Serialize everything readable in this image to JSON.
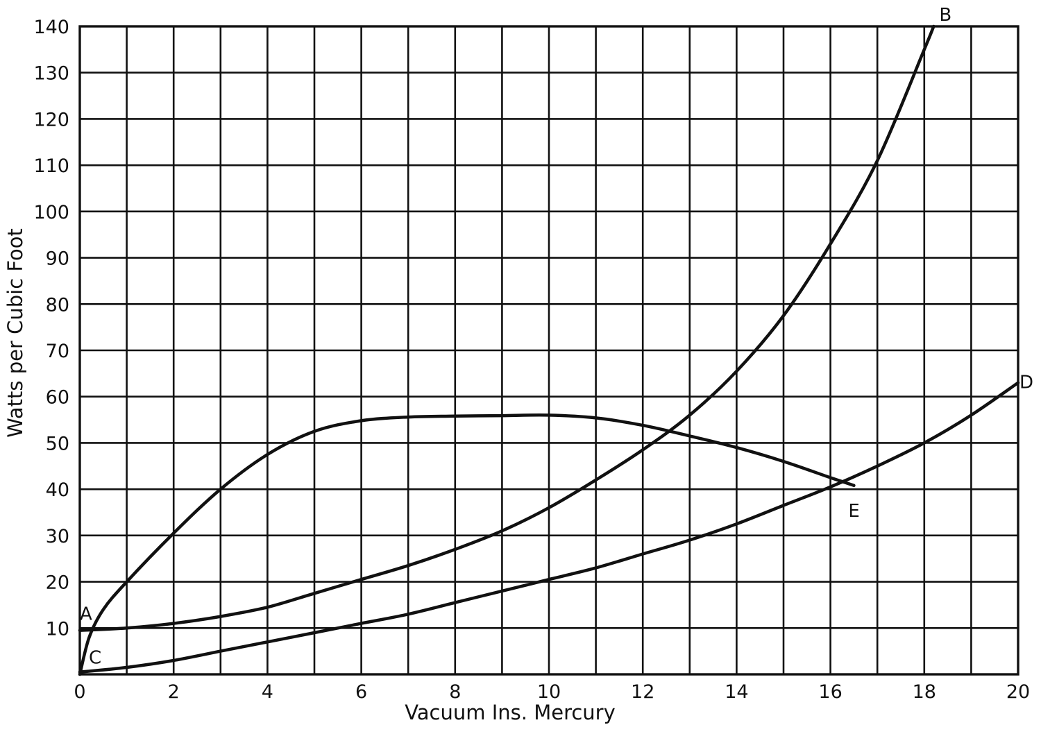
{
  "chart_data": {
    "type": "line",
    "title": "",
    "xlabel": "Vacuum Ins. Mercury",
    "ylabel": "Watts per Cubic Foot",
    "xlim": [
      0,
      20
    ],
    "ylim": [
      0,
      140
    ],
    "x_ticks": [
      "0",
      "2",
      "4",
      "6",
      "8",
      "10",
      "12",
      "14",
      "16",
      "18",
      "20"
    ],
    "y_ticks": [
      "10",
      "20",
      "30",
      "40",
      "50",
      "60",
      "70",
      "80",
      "90",
      "100",
      "110",
      "120",
      "130",
      "140"
    ],
    "grid": true,
    "series": [
      {
        "name": "A–B",
        "start_label": "A",
        "end_label": "B",
        "points": [
          [
            0,
            9.5
          ],
          [
            1,
            10
          ],
          [
            2,
            11
          ],
          [
            3,
            12.5
          ],
          [
            4,
            14.5
          ],
          [
            5,
            17.5
          ],
          [
            6,
            20.5
          ],
          [
            7,
            23.5
          ],
          [
            8,
            27
          ],
          [
            9,
            31
          ],
          [
            10,
            36
          ],
          [
            11,
            42
          ],
          [
            12,
            48.5
          ],
          [
            13,
            56
          ],
          [
            14,
            65.5
          ],
          [
            15,
            77.5
          ],
          [
            16,
            93
          ],
          [
            17,
            111
          ],
          [
            18,
            135
          ],
          [
            18.2,
            140
          ]
        ]
      },
      {
        "name": "C–D",
        "start_label": "C",
        "end_label": "D",
        "points": [
          [
            0,
            0.5
          ],
          [
            1,
            1.5
          ],
          [
            2,
            3
          ],
          [
            3,
            5
          ],
          [
            4,
            7
          ],
          [
            5,
            9
          ],
          [
            6,
            11
          ],
          [
            7,
            13
          ],
          [
            8,
            15.5
          ],
          [
            9,
            18
          ],
          [
            10,
            20.5
          ],
          [
            11,
            23
          ],
          [
            12,
            26
          ],
          [
            13,
            29
          ],
          [
            14,
            32.5
          ],
          [
            15,
            36.5
          ],
          [
            16,
            40.5
          ],
          [
            17,
            45
          ],
          [
            18,
            50
          ],
          [
            19,
            56
          ],
          [
            20,
            63
          ]
        ]
      },
      {
        "name": "C–E",
        "start_label": "C",
        "end_label": "E",
        "points": [
          [
            0,
            0
          ],
          [
            0.2,
            8
          ],
          [
            0.5,
            14
          ],
          [
            1,
            20
          ],
          [
            2,
            30.5
          ],
          [
            3,
            40
          ],
          [
            4,
            47.5
          ],
          [
            5,
            52.5
          ],
          [
            6,
            54.8
          ],
          [
            7,
            55.6
          ],
          [
            8,
            55.8
          ],
          [
            9,
            55.9
          ],
          [
            10,
            56
          ],
          [
            11,
            55.4
          ],
          [
            12,
            53.8
          ],
          [
            13,
            51.5
          ],
          [
            14,
            49
          ],
          [
            15,
            46
          ],
          [
            16,
            42.5
          ],
          [
            16.5,
            40.8
          ]
        ]
      }
    ]
  }
}
